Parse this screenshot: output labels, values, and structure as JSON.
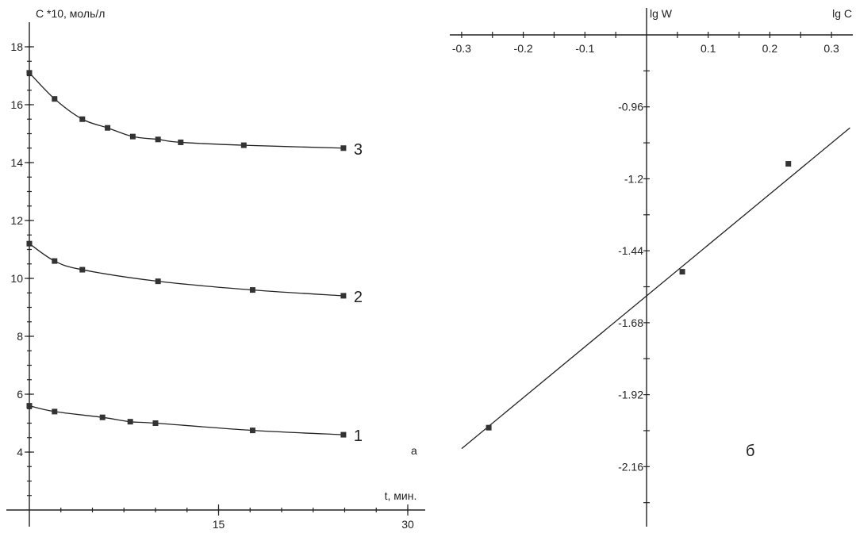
{
  "chart_data": [
    {
      "type": "line",
      "ylabel": "C *10, моль/л",
      "xlabel": "t, мин.",
      "panel_label": "а",
      "xlim": [
        0,
        30
      ],
      "ylim": [
        2,
        18.3
      ],
      "x_ticks": [
        "15",
        "30"
      ],
      "x_tick_values": [
        15,
        30
      ],
      "y_ticks": [
        "4",
        "6",
        "8",
        "10",
        "12",
        "14",
        "16",
        "18"
      ],
      "y_tick_values": [
        4,
        6,
        8,
        10,
        12,
        14,
        16,
        18
      ],
      "grid": false,
      "series": [
        {
          "name": "3",
          "x": [
            0,
            2,
            4.2,
            6.2,
            8.2,
            10.2,
            12,
            17,
            24.9
          ],
          "y": [
            17.1,
            16.2,
            15.5,
            15.2,
            14.9,
            14.8,
            14.7,
            14.6,
            14.5
          ]
        },
        {
          "name": "2",
          "x": [
            0,
            2,
            4.2,
            10.2,
            17.7,
            24.9
          ],
          "y": [
            11.2,
            10.6,
            10.3,
            9.9,
            9.6,
            9.4
          ]
        },
        {
          "name": "1",
          "x": [
            0,
            2,
            5.8,
            8,
            10,
            17.7,
            24.9
          ],
          "y": [
            5.6,
            5.4,
            5.2,
            5.05,
            5.0,
            4.75,
            4.6
          ]
        }
      ]
    },
    {
      "type": "scatter",
      "xlabel": "lg C",
      "ylabel": "lg W",
      "panel_label": "б",
      "xlim": [
        -0.32,
        0.34
      ],
      "ylim": [
        -2.42,
        -0.72
      ],
      "x_ticks": [
        "-0.3",
        "-0.2",
        "-0.1",
        "0.1",
        "0.2",
        "0.3"
      ],
      "x_tick_values": [
        -0.3,
        -0.2,
        -0.1,
        0.1,
        0.2,
        0.3
      ],
      "y_ticks": [
        "-0.96",
        "-1.2",
        "-1.44",
        "-1.68",
        "-1.92",
        "-2.16"
      ],
      "y_tick_values": [
        -0.96,
        -1.2,
        -1.44,
        -1.68,
        -1.92,
        -2.16
      ],
      "grid": false,
      "points": {
        "x": [
          -0.256,
          0.058,
          0.23
        ],
        "y": [
          -2.03,
          -1.51,
          -1.15
        ]
      },
      "fit_line": {
        "x": [
          -0.3,
          0.33
        ],
        "y": [
          -2.1,
          -1.03
        ]
      }
    }
  ]
}
